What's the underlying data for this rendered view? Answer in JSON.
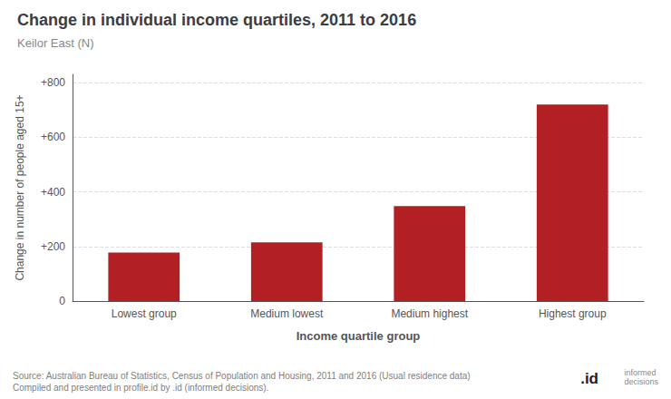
{
  "chart_data": {
    "type": "bar",
    "title": "Change in individual income quartiles, 2011 to 2016",
    "subtitle": "Keilor East (N)",
    "categories": [
      "Lowest group",
      "Medium lowest",
      "Medium highest",
      "Highest group"
    ],
    "values": [
      178,
      215,
      348,
      720
    ],
    "color": "#b32024",
    "xlabel": "Income quartile group",
    "ylabel": "Change in number of people aged 15+",
    "ylim": [
      0,
      830
    ],
    "yticks": [
      0,
      {
        "value": 200,
        "label": "+200"
      },
      {
        "value": 400,
        "label": "+400"
      },
      {
        "value": 600,
        "label": "+600"
      },
      {
        "value": 800,
        "label": "+800"
      }
    ],
    "grid": true,
    "annotations": [
      "Source: Australian Bureau of Statistics, Census of Population and Housing, 2011 and 2016 (Usual residence data)\nCompiled and presented in profile.id by .id (informed decisions).",
      ".id",
      "informed\ndecisions"
    ]
  }
}
